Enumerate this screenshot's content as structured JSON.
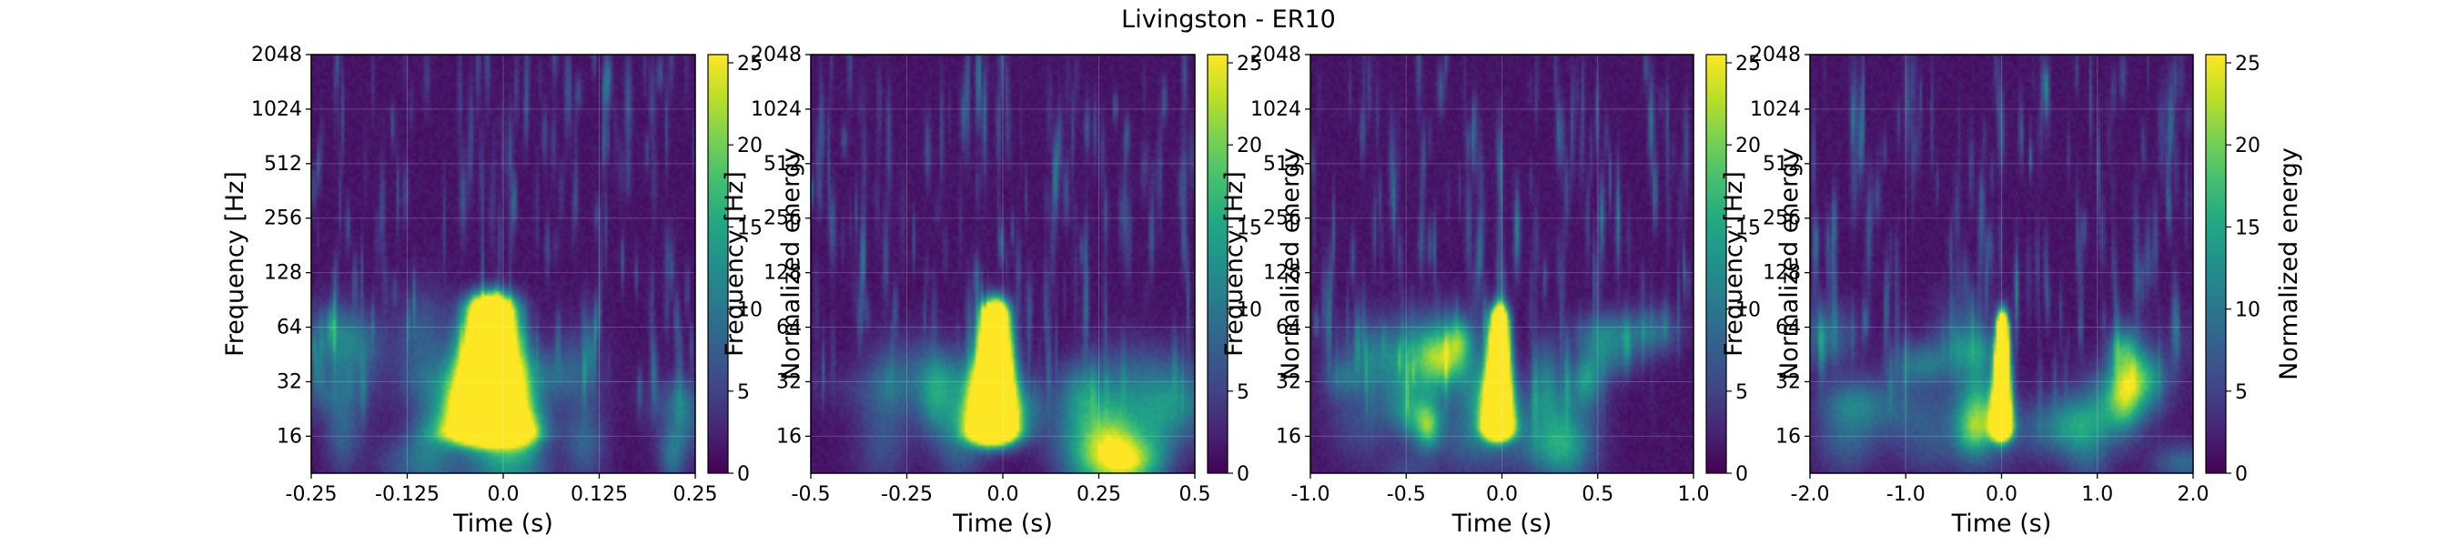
{
  "figure": {
    "title": "Livingston - ER10"
  },
  "colors": {
    "colormap": "viridis",
    "grid": "#ffffff",
    "axes_edge": "#000000"
  },
  "chart_data": [
    {
      "type": "heatmap",
      "xlabel": "Time (s)",
      "ylabel": "Frequency [Hz]",
      "ylabel_display": "Frequency [Hz]",
      "xlim": [
        -0.25,
        0.25
      ],
      "ylim": [
        10,
        2048
      ],
      "yscale": "log2",
      "x_ticks": [
        -0.25,
        -0.125,
        0.0,
        0.125,
        0.25
      ],
      "x_tick_labels": [
        "-0.25",
        "-0.125",
        "0.0",
        "0.125",
        "0.25"
      ],
      "y_ticks": [
        16,
        32,
        64,
        128,
        256,
        512,
        1024,
        2048
      ],
      "y_tick_labels": [
        "16",
        "32",
        "64",
        "128",
        "256",
        "512",
        "1024",
        "2048"
      ],
      "colorbar": {
        "label": "Normalized energy",
        "range": [
          0,
          25.5
        ],
        "ticks": [
          0,
          5,
          10,
          15,
          20,
          25
        ],
        "tick_labels": [
          "0",
          "5",
          "10",
          "15",
          "20",
          "25"
        ]
      },
      "grid": true,
      "peak": {
        "t": -0.02,
        "f_low": 17,
        "f_high": 75,
        "t_width": 0.03
      }
    },
    {
      "type": "heatmap",
      "xlabel": "Time (s)",
      "ylabel": "Frequency [Hz]",
      "ylabel_display": "Frequency [Hz]",
      "xlim": [
        -0.5,
        0.5
      ],
      "ylim": [
        10,
        2048
      ],
      "yscale": "log2",
      "x_ticks": [
        -0.5,
        -0.25,
        0.0,
        0.25,
        0.5
      ],
      "x_tick_labels": [
        "-0.5",
        "-0.25",
        "0.0",
        "0.25",
        "0.5"
      ],
      "y_ticks": [
        16,
        32,
        64,
        128,
        256,
        512,
        1024,
        2048
      ],
      "y_tick_labels": [
        "16",
        "32",
        "64",
        "128",
        "256",
        "512",
        "1024",
        "2048"
      ],
      "colorbar": {
        "label": "Normalized energy",
        "range": [
          0,
          25.5
        ],
        "ticks": [
          0,
          5,
          10,
          15,
          20,
          25
        ],
        "tick_labels": [
          "0",
          "5",
          "10",
          "15",
          "20",
          "25"
        ]
      },
      "grid": true,
      "peak": {
        "t": -0.025,
        "f_low": 17,
        "f_high": 70,
        "t_width": 0.035
      }
    },
    {
      "type": "heatmap",
      "xlabel": "Time (s)",
      "ylabel": "Frequency [Hz]",
      "ylabel_display": "Frequency [Hz]",
      "xlim": [
        -1.0,
        1.0
      ],
      "ylim": [
        10,
        2048
      ],
      "yscale": "log2",
      "x_ticks": [
        -1.0,
        -0.5,
        0.0,
        0.5,
        1.0
      ],
      "x_tick_labels": [
        "-1.0",
        "-0.5",
        "0.0",
        "0.5",
        "1.0"
      ],
      "y_ticks": [
        16,
        32,
        64,
        128,
        256,
        512,
        1024,
        2048
      ],
      "y_tick_labels": [
        "16",
        "32",
        "64",
        "128",
        "256",
        "512",
        "1024",
        "2048"
      ],
      "colorbar": {
        "label": "Normalized energy",
        "range": [
          0,
          25.5
        ],
        "ticks": [
          0,
          5,
          10,
          15,
          20,
          25
        ],
        "tick_labels": [
          "0",
          "5",
          "10",
          "15",
          "20",
          "25"
        ]
      },
      "grid": true,
      "peak": {
        "t": -0.02,
        "f_low": 18,
        "f_high": 65,
        "t_width": 0.045
      }
    },
    {
      "type": "heatmap",
      "xlabel": "Time (s)",
      "ylabel": "Frequency [Hz]",
      "ylabel_display": "Frequency [Hz]",
      "xlim": [
        -2.0,
        2.0
      ],
      "ylim": [
        10,
        2048
      ],
      "yscale": "log2",
      "x_ticks": [
        -2.0,
        -1.0,
        0.0,
        1.0,
        2.0
      ],
      "x_tick_labels": [
        "-2.0",
        "-1.0",
        "0.0",
        "1.0",
        "2.0"
      ],
      "y_ticks": [
        16,
        32,
        64,
        128,
        256,
        512,
        1024,
        2048
      ],
      "y_tick_labels": [
        "16",
        "32",
        "64",
        "128",
        "256",
        "512",
        "1024",
        "2048"
      ],
      "colorbar": {
        "label": "Normalized energy",
        "range": [
          0,
          25.5
        ],
        "ticks": [
          0,
          5,
          10,
          15,
          20,
          25
        ],
        "tick_labels": [
          "0",
          "5",
          "10",
          "15",
          "20",
          "25"
        ]
      },
      "grid": true,
      "peak": {
        "t": 0.0,
        "f_low": 18,
        "f_high": 60,
        "t_width": 0.06
      }
    }
  ]
}
